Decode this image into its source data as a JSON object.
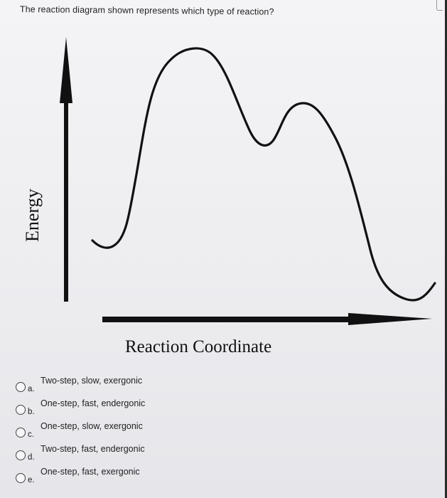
{
  "question": "The reaction diagram shown represents which type of reaction?",
  "diagram": {
    "y_axis_label": "Energy",
    "x_axis_label": "Reaction Coordinate",
    "curve_description_colors": {
      "curve": "#111111",
      "axes": "#111111"
    }
  },
  "options": [
    {
      "letter": "a.",
      "text": "Two-step, slow, exergonic"
    },
    {
      "letter": "b.",
      "text": "One-step, fast, endergonic"
    },
    {
      "letter": "c.",
      "text": "One-step, slow, exergonic"
    },
    {
      "letter": "d.",
      "text": "Two-step, fast, endergonic"
    },
    {
      "letter": "e.",
      "text": "One-step, fast, exergonic"
    }
  ]
}
